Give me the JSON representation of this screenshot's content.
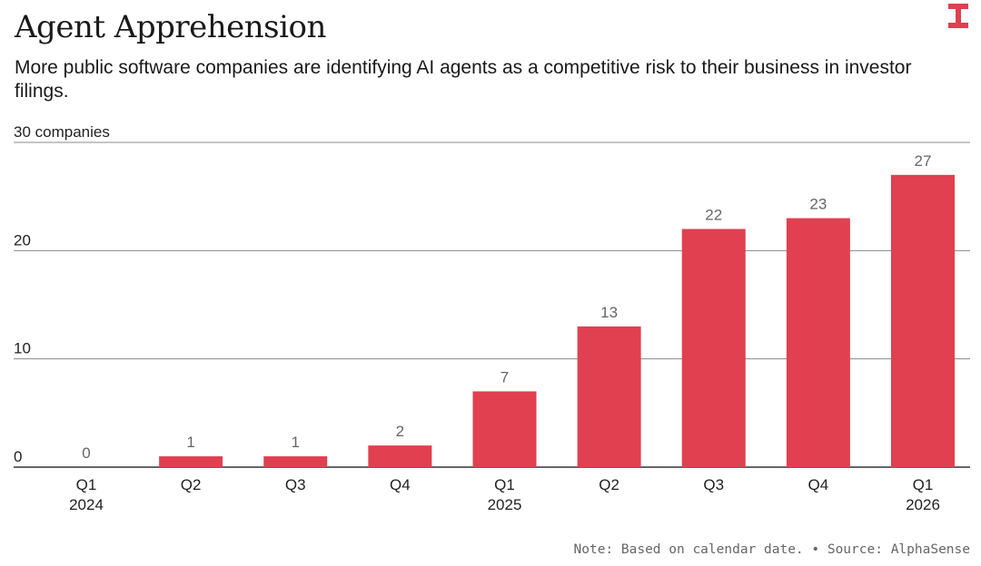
{
  "header": {
    "title": "Agent Apprehension",
    "subtitle": "More public software companies are identifying AI agents as a competitive risk to their business in investor filings."
  },
  "footer": {
    "note": "Note: Based on calendar date. • Source: AlphaSense"
  },
  "logo": {
    "icon": "brand-logo-icon",
    "color": "#e0404f"
  },
  "chart_data": {
    "type": "bar",
    "title": "Agent Apprehension",
    "categories": [
      [
        "Q1",
        "2024"
      ],
      [
        "Q2",
        ""
      ],
      [
        "Q3",
        ""
      ],
      [
        "Q4",
        ""
      ],
      [
        "Q1",
        "2025"
      ],
      [
        "Q2",
        ""
      ],
      [
        "Q3",
        ""
      ],
      [
        "Q4",
        ""
      ],
      [
        "Q1",
        "2026"
      ]
    ],
    "values": [
      0,
      1,
      1,
      2,
      7,
      13,
      22,
      23,
      27
    ],
    "ylim": [
      0,
      30
    ],
    "yticks": [
      {
        "value": 0,
        "label": "0"
      },
      {
        "value": 10,
        "label": "10"
      },
      {
        "value": 20,
        "label": "20"
      },
      {
        "value": 30,
        "label": "30 companies"
      }
    ],
    "grid": true,
    "bar_color": "#e0404f"
  }
}
